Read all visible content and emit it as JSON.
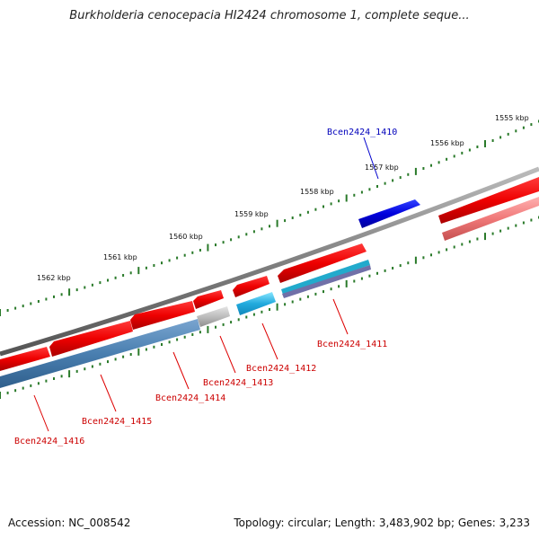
{
  "title": "Burkholderia cenocepacia HI2424 chromosome 1, complete seque...",
  "footer": {
    "accession": "Accession: NC_008542",
    "summary": "Topology: circular; Length: 3,483,902 bp; Genes: 3,233"
  },
  "colors": {
    "forward_gene": "#0000dd",
    "reverse_gene": "#ee0000",
    "cds_protein": "#4a7fb0",
    "cds_cyan": "#22aadd",
    "backbone": "#808080",
    "scale_ticks": "#2a7a2a"
  },
  "scale_ticks": [
    "1555 kbp",
    "1556 kbp",
    "1557 kbp",
    "1558 kbp",
    "1559 kbp",
    "1560 kbp",
    "1561 kbp",
    "1562 kbp"
  ],
  "gene_labels": {
    "forward": [
      "Bcen2424_1410"
    ],
    "reverse": [
      "Bcen2424_1411",
      "Bcen2424_1412",
      "Bcen2424_1413",
      "Bcen2424_1414",
      "Bcen2424_1415",
      "Bcen2424_1416"
    ]
  }
}
